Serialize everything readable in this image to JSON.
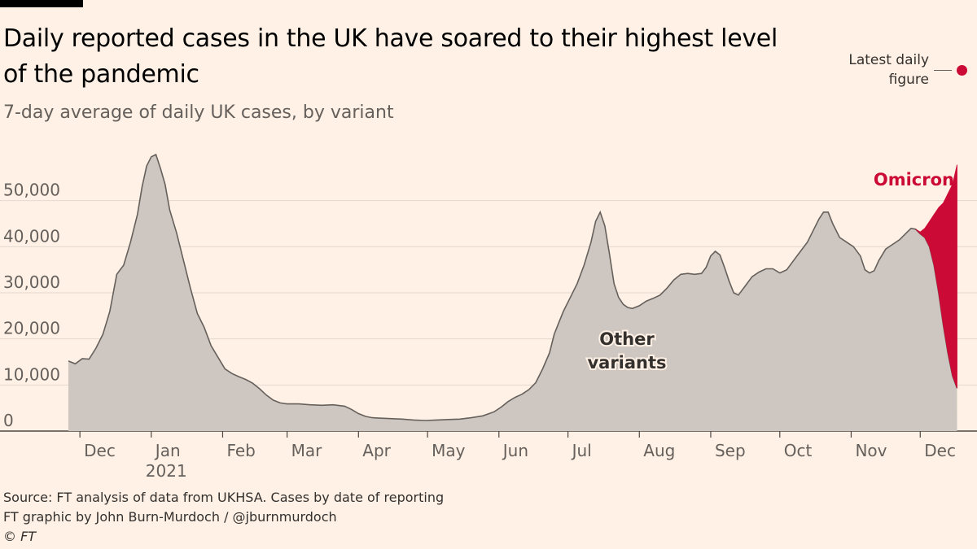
{
  "header": {
    "title": "Daily reported cases in the UK have soared to their highest level of the pandemic",
    "subtitle": "7-day average of daily UK cases, by variant"
  },
  "legend": {
    "label_line1": "Latest daily",
    "label_line2": "figure"
  },
  "footer": {
    "source": "Source: FT analysis of data from UKHSA. Cases by date of reporting",
    "credit": "FT graphic by John Burn-Murdoch / @jburnmurdoch",
    "copyright": "© FT"
  },
  "colors": {
    "background": "#fff1e5",
    "other_fill": "#cec6c0",
    "other_stroke": "#66605c",
    "omicron": "#cc0a36",
    "grid": "#e3d8cf"
  },
  "chart_data": {
    "type": "area",
    "title": "Daily reported cases in the UK have soared to their highest level of the pandemic",
    "subtitle": "7-day average of daily UK cases, by variant",
    "xlabel": "",
    "ylabel": "",
    "ylim": [
      0,
      60000
    ],
    "yticks": [
      0,
      10000,
      20000,
      30000,
      40000,
      50000
    ],
    "ytick_labels": [
      "0",
      "10,000",
      "20,000",
      "30,000",
      "40,000",
      "50,000"
    ],
    "x_unit": "days since 1 Dec 2020",
    "xlim": [
      -5,
      384
    ],
    "month_ticks": [
      {
        "label": "Dec",
        "day": 0
      },
      {
        "label": "Jan",
        "day": 31,
        "year": "2021"
      },
      {
        "label": "Feb",
        "day": 62
      },
      {
        "label": "Mar",
        "day": 90
      },
      {
        "label": "Apr",
        "day": 121
      },
      {
        "label": "May",
        "day": 151
      },
      {
        "label": "Jun",
        "day": 182
      },
      {
        "label": "Jul",
        "day": 212
      },
      {
        "label": "Aug",
        "day": 243
      },
      {
        "label": "Sep",
        "day": 274
      },
      {
        "label": "Oct",
        "day": 304
      },
      {
        "label": "Nov",
        "day": 335
      },
      {
        "label": "Dec",
        "day": 365
      }
    ],
    "series": [
      {
        "name": "Other variants",
        "label": [
          "Other",
          "variants"
        ],
        "points": [
          [
            -5,
            15200
          ],
          [
            -2,
            14600
          ],
          [
            1,
            15700
          ],
          [
            4,
            15600
          ],
          [
            7,
            18000
          ],
          [
            10,
            21000
          ],
          [
            13,
            26000
          ],
          [
            16,
            34000
          ],
          [
            19,
            36000
          ],
          [
            22,
            41000
          ],
          [
            25,
            47000
          ],
          [
            27,
            53000
          ],
          [
            29,
            57500
          ],
          [
            31,
            59500
          ],
          [
            33,
            60000
          ],
          [
            35,
            57000
          ],
          [
            37,
            53500
          ],
          [
            39,
            48000
          ],
          [
            42,
            43000
          ],
          [
            45,
            37000
          ],
          [
            48,
            31000
          ],
          [
            51,
            25500
          ],
          [
            54,
            22500
          ],
          [
            57,
            18500
          ],
          [
            60,
            16000
          ],
          [
            63,
            13500
          ],
          [
            66,
            12500
          ],
          [
            69,
            11800
          ],
          [
            72,
            11200
          ],
          [
            75,
            10400
          ],
          [
            78,
            9200
          ],
          [
            81,
            7800
          ],
          [
            84,
            6700
          ],
          [
            87,
            6100
          ],
          [
            90,
            5900
          ],
          [
            95,
            5900
          ],
          [
            100,
            5700
          ],
          [
            105,
            5600
          ],
          [
            110,
            5700
          ],
          [
            115,
            5400
          ],
          [
            118,
            4700
          ],
          [
            121,
            3800
          ],
          [
            124,
            3200
          ],
          [
            127,
            2900
          ],
          [
            130,
            2800
          ],
          [
            135,
            2700
          ],
          [
            140,
            2600
          ],
          [
            145,
            2400
          ],
          [
            150,
            2300
          ],
          [
            155,
            2400
          ],
          [
            160,
            2500
          ],
          [
            165,
            2600
          ],
          [
            170,
            2900
          ],
          [
            175,
            3300
          ],
          [
            180,
            4200
          ],
          [
            183,
            5200
          ],
          [
            186,
            6400
          ],
          [
            189,
            7300
          ],
          [
            192,
            8000
          ],
          [
            195,
            9000
          ],
          [
            198,
            10500
          ],
          [
            201,
            13500
          ],
          [
            204,
            17000
          ],
          [
            206,
            21000
          ],
          [
            208,
            23500
          ],
          [
            210,
            26000
          ],
          [
            213,
            29000
          ],
          [
            216,
            32000
          ],
          [
            219,
            36000
          ],
          [
            222,
            41000
          ],
          [
            224,
            45500
          ],
          [
            226,
            47500
          ],
          [
            228,
            44500
          ],
          [
            230,
            38500
          ],
          [
            232,
            32000
          ],
          [
            234,
            29000
          ],
          [
            236,
            27500
          ],
          [
            238,
            26800
          ],
          [
            240,
            26600
          ],
          [
            243,
            27200
          ],
          [
            246,
            28200
          ],
          [
            249,
            28800
          ],
          [
            252,
            29500
          ],
          [
            255,
            31000
          ],
          [
            258,
            32800
          ],
          [
            261,
            34000
          ],
          [
            264,
            34200
          ],
          [
            267,
            34000
          ],
          [
            270,
            34200
          ],
          [
            272,
            35500
          ],
          [
            274,
            38000
          ],
          [
            276,
            39000
          ],
          [
            278,
            38200
          ],
          [
            280,
            35500
          ],
          [
            282,
            32500
          ],
          [
            284,
            30000
          ],
          [
            286,
            29500
          ],
          [
            289,
            31500
          ],
          [
            292,
            33500
          ],
          [
            295,
            34500
          ],
          [
            298,
            35200
          ],
          [
            301,
            35200
          ],
          [
            304,
            34300
          ],
          [
            307,
            35000
          ],
          [
            310,
            37000
          ],
          [
            313,
            39000
          ],
          [
            316,
            41000
          ],
          [
            319,
            44000
          ],
          [
            321,
            46000
          ],
          [
            323,
            47500
          ],
          [
            325,
            47500
          ],
          [
            327,
            45000
          ],
          [
            330,
            42000
          ],
          [
            333,
            41000
          ],
          [
            336,
            40000
          ],
          [
            339,
            38000
          ],
          [
            341,
            35000
          ],
          [
            343,
            34300
          ],
          [
            345,
            34800
          ],
          [
            347,
            37000
          ],
          [
            350,
            39500
          ],
          [
            353,
            40500
          ],
          [
            356,
            41500
          ],
          [
            359,
            43000
          ],
          [
            361,
            44000
          ],
          [
            363,
            43800
          ],
          [
            365,
            42800
          ],
          [
            367,
            42000
          ],
          [
            369,
            40000
          ],
          [
            371,
            36000
          ],
          [
            373,
            30000
          ],
          [
            375,
            23000
          ],
          [
            377,
            17000
          ],
          [
            379,
            12000
          ],
          [
            381,
            9300
          ]
        ]
      },
      {
        "name": "Omicron",
        "label": [
          "Omicron"
        ],
        "points": [
          [
            363,
            43800
          ],
          [
            365,
            43200
          ],
          [
            367,
            44000
          ],
          [
            369,
            45500
          ],
          [
            371,
            47000
          ],
          [
            373,
            48500
          ],
          [
            375,
            49500
          ],
          [
            377,
            51500
          ],
          [
            379,
            53500
          ],
          [
            381,
            57800
          ]
        ]
      }
    ],
    "annotations": [
      {
        "text": "Latest daily figure",
        "day": 381,
        "value": 57800
      }
    ]
  }
}
